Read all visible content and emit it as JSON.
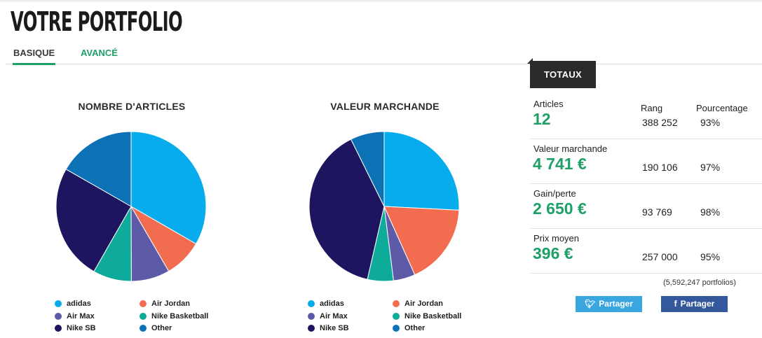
{
  "page_title": "VOTRE PORTFOLIO",
  "tabs": [
    {
      "label": "BASIQUE",
      "active": true
    },
    {
      "label": "AVANCÉ",
      "active": false
    }
  ],
  "chart_data": [
    {
      "type": "pie",
      "title": "NOMBRE D'ARTICLES",
      "categories": [
        "adidas",
        "Air Jordan",
        "Air Max",
        "Nike Basketball",
        "Nike SB",
        "Other"
      ],
      "values": [
        33.3,
        8.3,
        8.3,
        8.3,
        25.0,
        16.7
      ],
      "colors": [
        "#06aceb",
        "#f26c50",
        "#5d5aa7",
        "#0eab9a",
        "#1d1560",
        "#0c72b5"
      ]
    },
    {
      "type": "pie",
      "title": "VALEUR MARCHANDE",
      "categories": [
        "adidas",
        "Air Jordan",
        "Air Max",
        "Nike Basketball",
        "Nike SB",
        "Other"
      ],
      "values": [
        25.8,
        17.5,
        4.7,
        5.6,
        39.1,
        7.3
      ],
      "colors": [
        "#06aceb",
        "#f26c50",
        "#5d5aa7",
        "#0eab9a",
        "#1d1560",
        "#0c72b5"
      ]
    }
  ],
  "legend": [
    {
      "label": "adidas",
      "color": "#06aceb"
    },
    {
      "label": "Air Jordan",
      "color": "#f26c50"
    },
    {
      "label": "Air Max",
      "color": "#5d5aa7"
    },
    {
      "label": "Nike Basketball",
      "color": "#0eab9a"
    },
    {
      "label": "Nike SB",
      "color": "#1d1560"
    },
    {
      "label": "Other",
      "color": "#0c72b5"
    }
  ],
  "totals": {
    "tab_label": "TOTAUX",
    "rank_header": "Rang",
    "pct_header": "Pourcentage",
    "stats": [
      {
        "label": "Articles",
        "value": "12",
        "rank": "388 252",
        "pct": "93%"
      },
      {
        "label": "Valeur marchande",
        "value": "4 741 €",
        "rank": "190 106",
        "pct": "97%"
      },
      {
        "label": "Gain/perte",
        "value": "2 650 €",
        "rank": "93 769",
        "pct": "98%"
      },
      {
        "label": "Prix moyen",
        "value": "396 €",
        "rank": "257 000",
        "pct": "95%"
      }
    ],
    "portfolio_count": "(5,592,247 portfolios)"
  },
  "share": {
    "twitter_label": "Partager",
    "facebook_label": "Partager",
    "twitter_icon": "twitter-bird-icon",
    "facebook_icon": "facebook-f-icon"
  },
  "accent_color": "#1d9f66"
}
